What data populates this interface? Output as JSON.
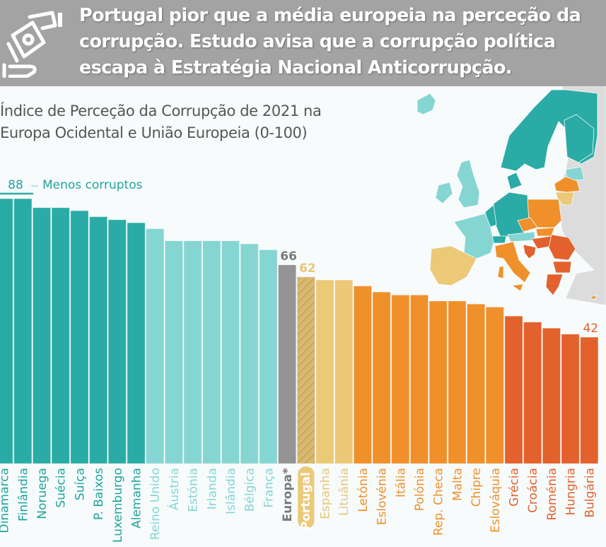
{
  "header": {
    "title": "Portugal pior que a média europeia na perceção da corrupção. Estudo avisa que a corrupção política escapa à Estratégia Nacional Anticorrupção.",
    "icon": "hand-money-icon"
  },
  "colors": {
    "header_bg": "#a3a3a3",
    "dark_teal": "#2aaba5",
    "light_teal": "#85d5d2",
    "grey": "#949494",
    "pale_yellow": "#ecc977",
    "orange": "#ef902a",
    "red_orange": "#e2612c",
    "map_other": "#dcdcdc"
  },
  "chart_data": {
    "type": "bar",
    "title": "Índice de Perceção da Corrupção de 2021 na Europa Ocidental e União Europeia (0-100)",
    "xlabel": "",
    "ylabel": "",
    "ylim": [
      0,
      100
    ],
    "grid": false,
    "annotations": [
      {
        "target": "Dinamarca",
        "text": "88",
        "note": "Menos corruptos"
      },
      {
        "target": "Europa*",
        "text": "66"
      },
      {
        "target": "Portugal",
        "text": "62"
      },
      {
        "target": "Bulgária",
        "text": "42"
      }
    ],
    "categories": [
      "Dinamarca",
      "Finlândia",
      "Noruega",
      "Suécia",
      "Suíça",
      "P. Baixos",
      "Luxemburgo",
      "Alemanha",
      "Reino Unido",
      "Áustria",
      "Estónia",
      "Irlanda",
      "Islândia",
      "Bélgica",
      "França",
      "Europa*",
      "Portugal",
      "Espanha",
      "Lituânia",
      "Letónia",
      "Eslovénia",
      "Itália",
      "Polónia",
      "Rep. Checa",
      "Malta",
      "Chipre",
      "Eslováquia",
      "Grécia",
      "Croácia",
      "Roménia",
      "Hungria",
      "Bulgária"
    ],
    "values": [
      88,
      88,
      85,
      85,
      84,
      82,
      81,
      80,
      78,
      74,
      74,
      74,
      74,
      73,
      71,
      66,
      62,
      61,
      61,
      59,
      57,
      56,
      56,
      54,
      54,
      53,
      52,
      49,
      47,
      45,
      43,
      42
    ],
    "groups": [
      "dark_teal",
      "dark_teal",
      "dark_teal",
      "dark_teal",
      "dark_teal",
      "dark_teal",
      "dark_teal",
      "dark_teal",
      "light_teal",
      "light_teal",
      "light_teal",
      "light_teal",
      "light_teal",
      "light_teal",
      "light_teal",
      "grey",
      "pale_yellow",
      "pale_yellow",
      "pale_yellow",
      "orange",
      "orange",
      "orange",
      "orange",
      "orange",
      "orange",
      "orange",
      "orange",
      "red_orange",
      "red_orange",
      "red_orange",
      "red_orange",
      "red_orange"
    ],
    "highlight": "Portugal",
    "top_note": "Menos corruptos"
  },
  "map": {
    "description": "Europe map colored by CPI group",
    "legend_reference": "same colors as bars"
  }
}
